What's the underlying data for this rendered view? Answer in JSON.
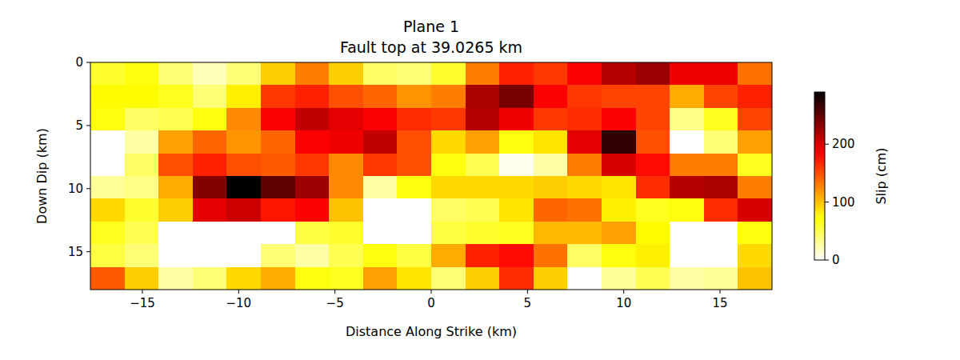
{
  "chart_data": {
    "type": "heatmap",
    "title": "Plane 1",
    "subtitle": "Fault top at 39.0265 km",
    "x_label": "Distance Along Strike (km)",
    "y_label": "Down Dip (km)",
    "xlim": [
      -17.7,
      17.7
    ],
    "ylim": [
      18,
      0
    ],
    "xticks": [
      {
        "value": -15,
        "label": "−15"
      },
      {
        "value": -10,
        "label": "−10"
      },
      {
        "value": -5,
        "label": "−5"
      },
      0,
      5,
      10,
      15
    ],
    "yticks": [
      0,
      5,
      10,
      15
    ],
    "cells": [
      [
        60,
        70,
        40,
        20,
        40,
        95,
        130,
        95,
        45,
        40,
        60,
        130,
        170,
        160,
        185,
        215,
        225,
        190,
        190,
        135
      ],
      [
        75,
        75,
        65,
        40,
        80,
        160,
        170,
        150,
        140,
        120,
        130,
        220,
        240,
        185,
        160,
        155,
        155,
        110,
        155,
        170
      ],
      [
        70,
        45,
        50,
        70,
        125,
        185,
        210,
        195,
        185,
        165,
        160,
        215,
        190,
        160,
        165,
        185,
        155,
        35,
        65,
        155
      ],
      [
        0,
        25,
        115,
        140,
        120,
        140,
        185,
        190,
        210,
        150,
        90,
        115,
        70,
        85,
        195,
        270,
        150,
        0,
        40,
        115
      ],
      [
        0,
        45,
        150,
        170,
        150,
        145,
        160,
        125,
        160,
        150,
        70,
        50,
        5,
        25,
        130,
        200,
        180,
        130,
        130,
        65
      ],
      [
        30,
        35,
        110,
        235,
        290,
        250,
        225,
        125,
        25,
        70,
        90,
        90,
        90,
        95,
        90,
        85,
        165,
        215,
        220,
        130
      ],
      [
        90,
        60,
        95,
        195,
        205,
        175,
        185,
        100,
        0,
        0,
        45,
        50,
        85,
        140,
        135,
        80,
        65,
        70,
        165,
        200
      ],
      [
        65,
        50,
        0,
        0,
        0,
        0,
        55,
        60,
        0,
        0,
        55,
        60,
        65,
        105,
        105,
        115,
        75,
        0,
        0,
        70
      ],
      [
        55,
        40,
        0,
        0,
        0,
        40,
        25,
        50,
        70,
        55,
        110,
        170,
        180,
        135,
        45,
        70,
        80,
        0,
        0,
        90
      ],
      [
        145,
        95,
        25,
        40,
        90,
        110,
        70,
        65,
        115,
        85,
        40,
        95,
        165,
        95,
        0,
        30,
        50,
        25,
        30,
        100
      ]
    ],
    "colorbar": {
      "range": [
        0,
        290
      ],
      "ticks": [
        0,
        100,
        200
      ],
      "label": "Slip (cm)"
    }
  }
}
